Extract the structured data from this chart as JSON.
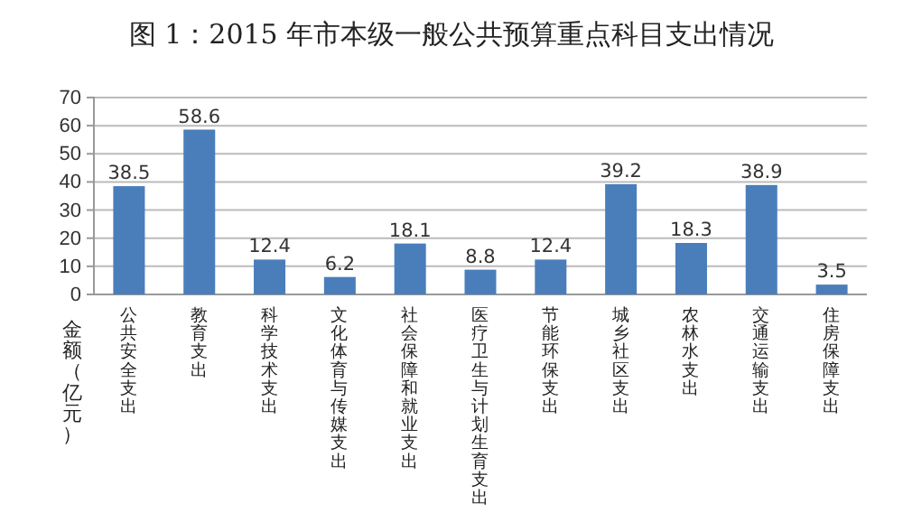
{
  "chart_data": {
    "type": "bar",
    "title": "图 1：2015 年市本级一般公共预算重点科目支出情况",
    "ylabel": "金额（亿元）",
    "categories": [
      "公共安全支出",
      "教育支出",
      "科学技术支出",
      "文化体育与传媒支出",
      "社会保障和就业支出",
      "医疗卫生与计划生育支出",
      "节能环保支出",
      "城乡社区支出",
      "农林水支出",
      "交通运输支出",
      "住房保障支出"
    ],
    "values": [
      38.5,
      58.6,
      12.4,
      6.2,
      18.1,
      8.8,
      12.4,
      39.2,
      18.3,
      38.9,
      3.5
    ],
    "color": "#4a7ebb",
    "ylim": [
      0,
      70
    ],
    "yticks": [
      0,
      10,
      20,
      30,
      40,
      50,
      60,
      70
    ],
    "grid": "y",
    "data_labels": true
  }
}
